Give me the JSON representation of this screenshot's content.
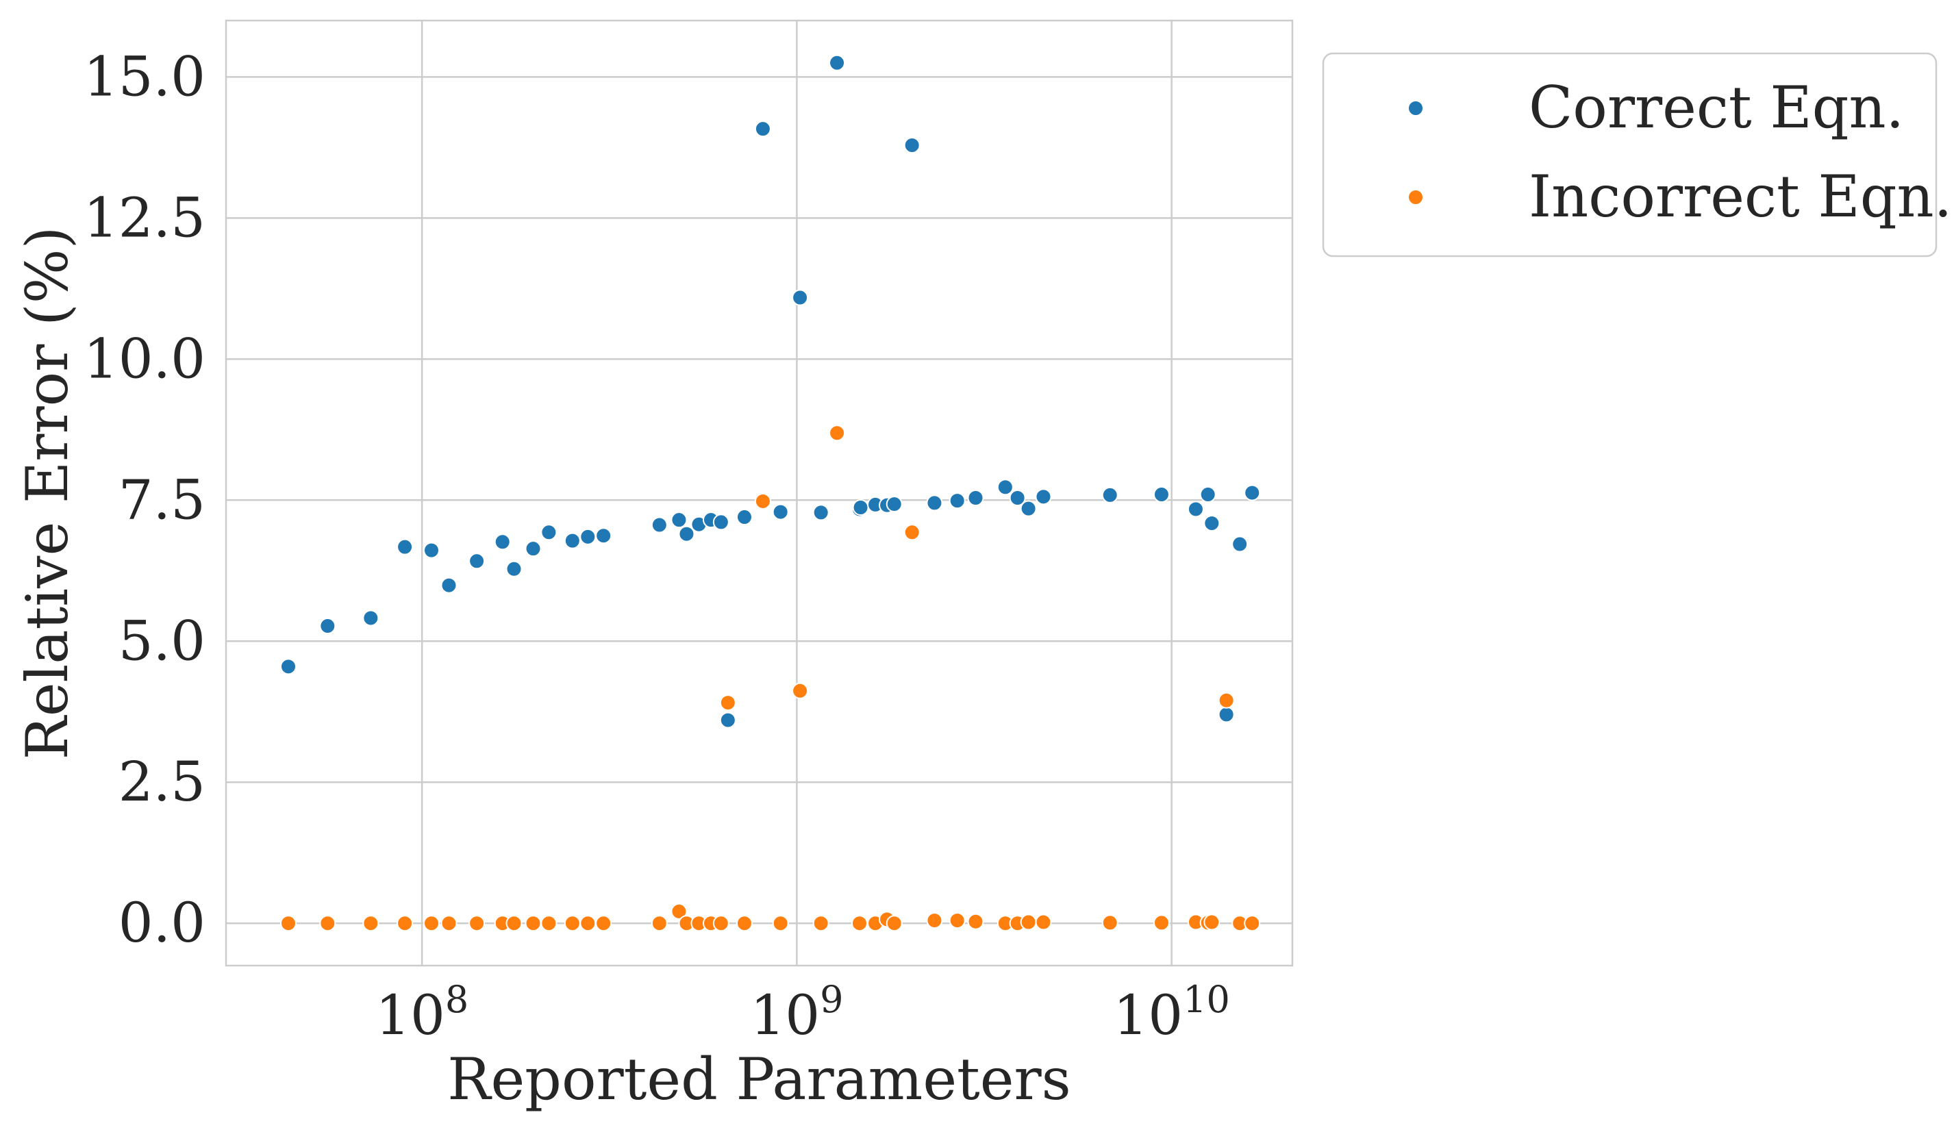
{
  "chart_data": {
    "type": "scatter",
    "xlabel": "Reported Parameters",
    "ylabel": "Relative Error (%)",
    "xscale": "log",
    "xlim": [
      30000000,
      21000000000
    ],
    "ylim": [
      -0.75,
      16.0
    ],
    "xticks": [
      {
        "value": 100000000,
        "base": "10",
        "exp": "8"
      },
      {
        "value": 1000000000,
        "base": "10",
        "exp": "9"
      },
      {
        "value": 10000000000,
        "base": "10",
        "exp": "10"
      }
    ],
    "yticks": [
      {
        "value": 0.0,
        "label": "0.0"
      },
      {
        "value": 2.5,
        "label": "2.5"
      },
      {
        "value": 5.0,
        "label": "5.0"
      },
      {
        "value": 7.5,
        "label": "7.5"
      },
      {
        "value": 10.0,
        "label": "10.0"
      },
      {
        "value": 12.5,
        "label": "12.5"
      },
      {
        "value": 15.0,
        "label": "15.0"
      }
    ],
    "grid": true,
    "legend_position": "outside-top-right",
    "series": [
      {
        "name": "Correct Eqn.",
        "color": "#1f77b4",
        "points": [
          [
            44000000,
            4.55
          ],
          [
            56000000,
            5.27
          ],
          [
            73000000,
            5.41
          ],
          [
            90000000,
            6.67
          ],
          [
            106000000,
            6.61
          ],
          [
            118000000,
            5.99
          ],
          [
            140000000,
            6.42
          ],
          [
            164000000,
            6.76
          ],
          [
            176000000,
            6.28
          ],
          [
            198000000,
            6.64
          ],
          [
            218000000,
            6.93
          ],
          [
            252000000,
            6.78
          ],
          [
            277000000,
            6.85
          ],
          [
            305000000,
            6.87
          ],
          [
            430000000,
            7.06
          ],
          [
            485000000,
            7.15
          ],
          [
            508000000,
            6.9
          ],
          [
            548000000,
            7.07
          ],
          [
            590000000,
            7.15
          ],
          [
            628000000,
            7.11
          ],
          [
            655000000,
            3.6
          ],
          [
            725000000,
            7.2
          ],
          [
            812000000,
            14.08
          ],
          [
            905000000,
            7.29
          ],
          [
            1020000000,
            11.09
          ],
          [
            1160000000,
            7.28
          ],
          [
            1280000000,
            15.25
          ],
          [
            1470000000,
            7.34
          ],
          [
            1480000000,
            7.37
          ],
          [
            1620000000,
            7.42
          ],
          [
            1740000000,
            7.41
          ],
          [
            1820000000,
            7.43
          ],
          [
            2030000000,
            13.79
          ],
          [
            2330000000,
            7.45
          ],
          [
            2680000000,
            7.49
          ],
          [
            3000000000,
            7.54
          ],
          [
            3600000000,
            7.73
          ],
          [
            3880000000,
            7.54
          ],
          [
            4150000000,
            7.35
          ],
          [
            4550000000,
            7.56
          ],
          [
            6850000000,
            7.59
          ],
          [
            9400000000,
            7.6
          ],
          [
            11600000000,
            7.34
          ],
          [
            12500000000,
            7.6
          ],
          [
            12800000000,
            7.09
          ],
          [
            14000000000,
            3.7
          ],
          [
            15200000000,
            6.72
          ],
          [
            16400000000,
            7.63
          ]
        ]
      },
      {
        "name": "Incorrect Eqn.",
        "color": "#ff7f0e",
        "points": [
          [
            44000000,
            0.0
          ],
          [
            56000000,
            0.0
          ],
          [
            73000000,
            0.0
          ],
          [
            90000000,
            0.0
          ],
          [
            106000000,
            0.0
          ],
          [
            118000000,
            0.0
          ],
          [
            140000000,
            0.0
          ],
          [
            164000000,
            0.0
          ],
          [
            176000000,
            0.0
          ],
          [
            198000000,
            0.0
          ],
          [
            218000000,
            0.0
          ],
          [
            252000000,
            0.0
          ],
          [
            277000000,
            0.0
          ],
          [
            305000000,
            0.0
          ],
          [
            430000000,
            0.0
          ],
          [
            485000000,
            0.21
          ],
          [
            508000000,
            0.0
          ],
          [
            548000000,
            0.0
          ],
          [
            590000000,
            0.0
          ],
          [
            628000000,
            0.0
          ],
          [
            655000000,
            3.91
          ],
          [
            725000000,
            0.0
          ],
          [
            812000000,
            7.48
          ],
          [
            905000000,
            0.0
          ],
          [
            1020000000,
            4.12
          ],
          [
            1160000000,
            0.0
          ],
          [
            1280000000,
            8.69
          ],
          [
            1470000000,
            0.0
          ],
          [
            1620000000,
            0.0
          ],
          [
            1740000000,
            0.07
          ],
          [
            1820000000,
            0.0
          ],
          [
            2030000000,
            6.93
          ],
          [
            2330000000,
            0.05
          ],
          [
            2680000000,
            0.05
          ],
          [
            3000000000,
            0.03
          ],
          [
            3600000000,
            0.0
          ],
          [
            3880000000,
            0.0
          ],
          [
            4150000000,
            0.02
          ],
          [
            4550000000,
            0.02
          ],
          [
            6850000000,
            0.01
          ],
          [
            9400000000,
            0.01
          ],
          [
            11600000000,
            0.02
          ],
          [
            12500000000,
            0.01
          ],
          [
            12800000000,
            0.02
          ],
          [
            14000000000,
            3.95
          ],
          [
            15200000000,
            0.0
          ],
          [
            16400000000,
            0.0
          ]
        ]
      }
    ]
  }
}
